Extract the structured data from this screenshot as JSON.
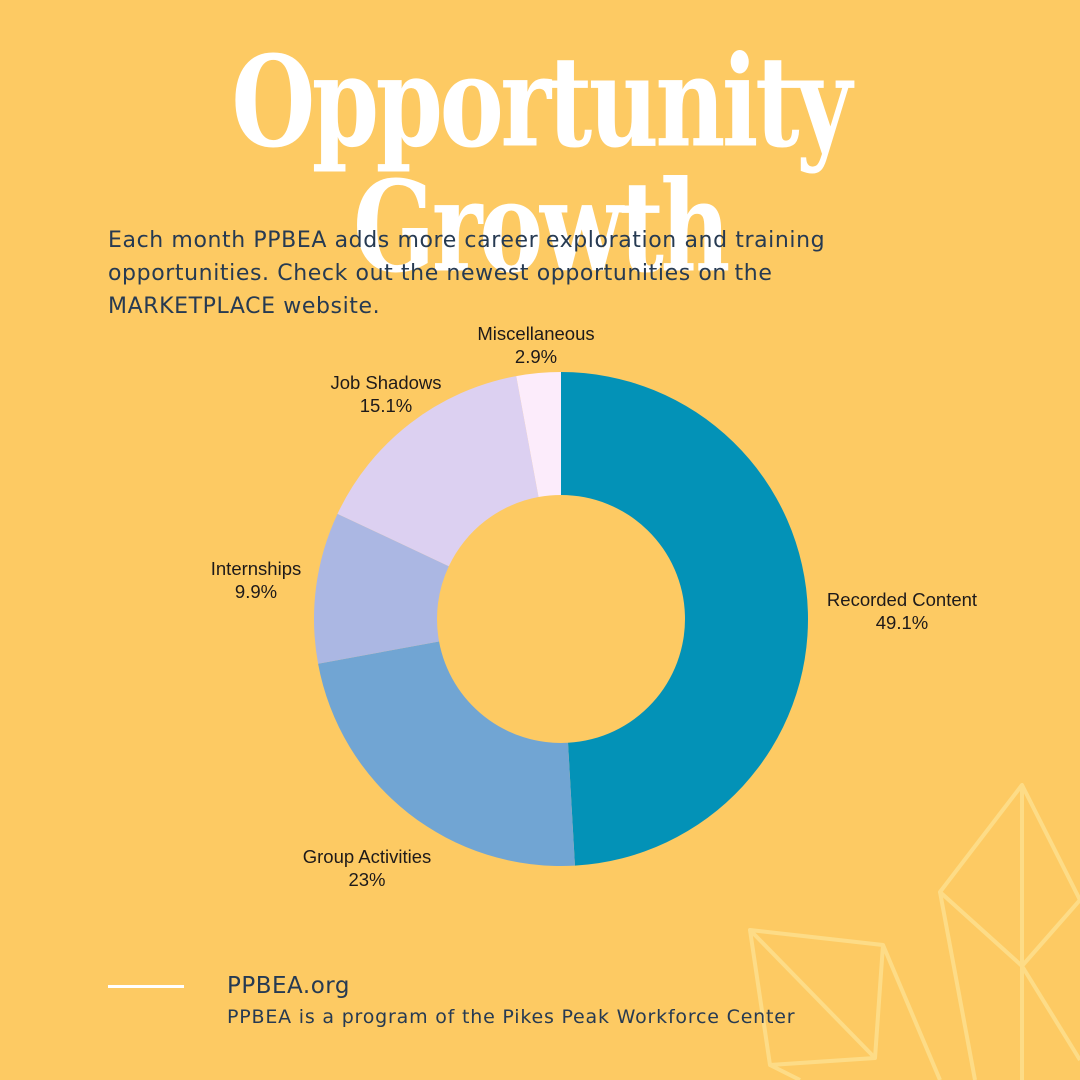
{
  "header": {
    "title": "Opportunity Growth"
  },
  "intro": {
    "lines": [
      "Each month PPBEA adds more career exploration and training",
      "opportunities. Check out the newest opportunities on the",
      "MARKETPLACE website."
    ]
  },
  "chart_data": {
    "type": "pie",
    "subtype": "donut",
    "title": "",
    "categories": [
      "Recorded Content",
      "Group Activities",
      "Internships",
      "Job Shadows",
      "Miscellaneous"
    ],
    "values": [
      49.1,
      23,
      9.9,
      15.1,
      2.9
    ],
    "value_labels": [
      "49.1%",
      "23%",
      "9.9%",
      "15.1%",
      "2.9%"
    ],
    "colors": [
      "#0392b7",
      "#71a5d3",
      "#abb7e3",
      "#dcd0f1",
      "#fcecfb"
    ],
    "start_angle": "12 o'clock",
    "direction": "clockwise",
    "legend": "none (labels outside slices)"
  },
  "labels": [
    {
      "name": "Recorded Content",
      "value": "49.1%"
    },
    {
      "name": "Group Activities",
      "value": "23%"
    },
    {
      "name": "Internships",
      "value": "9.9%"
    },
    {
      "name": "Job Shadows",
      "value": "15.1%"
    },
    {
      "name": "Miscellaneous",
      "value": "2.9%"
    }
  ],
  "footer": {
    "url": "PPBEA.org",
    "tagline": "PPBEA is a program of the Pikes Peak Workforce Center"
  },
  "colors": {
    "background": "#fdca63",
    "title": "#ffffff",
    "text": "#263a52"
  }
}
